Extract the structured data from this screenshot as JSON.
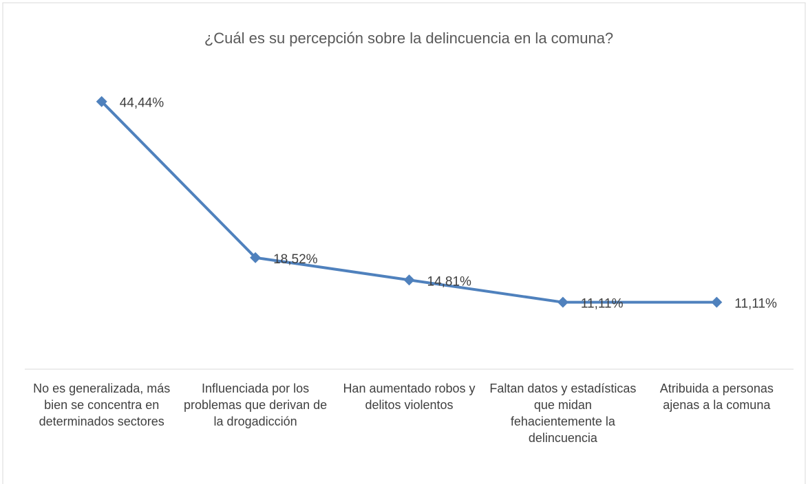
{
  "chart_data": {
    "type": "line",
    "title": "¿Cuál es su percepción sobre la delincuencia en la comuna?",
    "categories": [
      "No es generalizada, más bien se concentra en determinados sectores",
      "Influenciada por los problemas que derivan de la drogadicción",
      "Han aumentado robos y delitos violentos",
      "Faltan datos y estadísticas que midan fehacientemente la delincuencia",
      "Atribuida a personas ajenas a la comuna"
    ],
    "values": [
      44.44,
      18.52,
      14.81,
      11.11,
      11.11
    ],
    "value_labels": [
      "44,44%",
      "18,52%",
      "14,81%",
      "11,11%",
      "11,11%"
    ],
    "color": "#4f81bd"
  }
}
